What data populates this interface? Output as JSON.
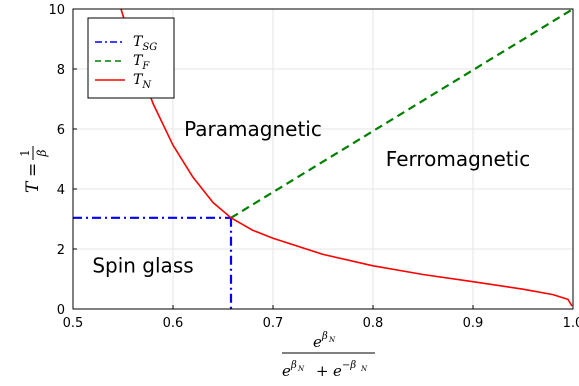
{
  "chart_data": {
    "type": "line",
    "xlim": [
      0.5,
      1.0
    ],
    "ylim": [
      0,
      10
    ],
    "xticks": [
      "0.5",
      "0.6",
      "0.7",
      "0.8",
      "0.9",
      "1.0"
    ],
    "yticks": [
      "0",
      "2",
      "4",
      "6",
      "8",
      "10"
    ],
    "grid": true,
    "legend_position": "top-left",
    "xlabel": {
      "num_base": "e",
      "num_sup": "β",
      "num_sup_sub": "N",
      "den_a_base": "e",
      "den_a_sup": "β",
      "den_a_sup_sub": "N",
      "plus": "+",
      "den_b_base": "e",
      "den_b_sup": "−β",
      "den_b_sup_sub": "N"
    },
    "ylabel": {
      "lhs": "T",
      "eq": "=",
      "num": "1",
      "den": "β"
    },
    "series": [
      {
        "name": "T",
        "name_sub": "SG",
        "color": "#0000ff",
        "dash": "dashdot",
        "segments": [
          {
            "x": [
              0.5,
              0.658
            ],
            "y": [
              3.04,
              3.04
            ]
          },
          {
            "x": [
              0.658,
              0.658
            ],
            "y": [
              3.04,
              0
            ]
          }
        ]
      },
      {
        "name": "T",
        "name_sub": "F",
        "color": "#008000",
        "dash": "dashed",
        "segments": [
          {
            "x": [
              0.658,
              1.0
            ],
            "y": [
              3.04,
              10.0
            ]
          }
        ]
      },
      {
        "name": "T",
        "name_sub": "N",
        "color": "#ff0000",
        "dash": "solid",
        "segments": [
          {
            "x": [
              0.548,
              0.56,
              0.58,
              0.6,
              0.62,
              0.64,
              0.658,
              0.68,
              0.7,
              0.75,
              0.8,
              0.85,
              0.9,
              0.95,
              0.98,
              0.995,
              0.999
            ],
            "y": [
              10.0,
              8.7,
              6.85,
              5.46,
              4.39,
              3.55,
              3.04,
              2.62,
              2.36,
              1.82,
              1.44,
              1.15,
              0.91,
              0.66,
              0.48,
              0.32,
              0.1
            ]
          }
        ]
      }
    ],
    "annotations": [
      {
        "text": "Paramagnetic",
        "x": 0.68,
        "y": 6.0
      },
      {
        "text": "Ferromagnetic",
        "x": 0.885,
        "y": 5.0
      },
      {
        "text": "Spin glass",
        "x": 0.57,
        "y": 1.45
      }
    ]
  }
}
